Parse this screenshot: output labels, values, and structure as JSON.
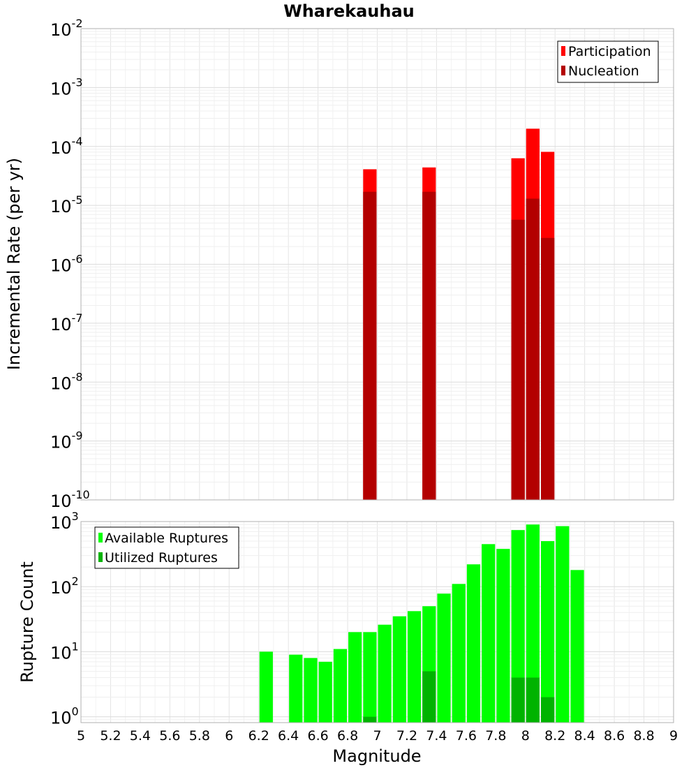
{
  "chart_data": [
    {
      "type": "bar",
      "title": "Wharekauhau",
      "xlabel": "",
      "ylabel": "Incremental Rate (per yr)",
      "yscale": "log",
      "ylim_exponents": [
        -10,
        -2
      ],
      "ytick_base": "10",
      "yticks": [
        "-10",
        "-9",
        "-8",
        "-7",
        "-6",
        "-5",
        "-4",
        "-3",
        "-2"
      ],
      "xlim": [
        5,
        9
      ],
      "bin_width": 0.1,
      "grid": true,
      "legend_position": "top-right",
      "series": [
        {
          "name": "Participation",
          "color": "#ff0000",
          "points": [
            {
              "x": 6.95,
              "y": 4.1e-05
            },
            {
              "x": 7.35,
              "y": 4.4e-05
            },
            {
              "x": 7.95,
              "y": 6.3e-05
            },
            {
              "x": 8.05,
              "y": 0.0002
            },
            {
              "x": 8.15,
              "y": 8.1e-05
            }
          ]
        },
        {
          "name": "Nucleation",
          "color": "#b30000",
          "points": [
            {
              "x": 6.95,
              "y": 1.7e-05
            },
            {
              "x": 7.35,
              "y": 1.7e-05
            },
            {
              "x": 7.95,
              "y": 5.7e-06
            },
            {
              "x": 8.05,
              "y": 1.3e-05
            },
            {
              "x": 8.15,
              "y": 2.8e-06
            }
          ]
        }
      ]
    },
    {
      "type": "bar",
      "title": "",
      "xlabel": "Magnitude",
      "ylabel": "Rupture Count",
      "yscale": "log",
      "ylim_exponents": [
        -0.09,
        3
      ],
      "ytick_base": "10",
      "yticks": [
        "0",
        "1",
        "2",
        "3"
      ],
      "xlim": [
        5,
        9
      ],
      "xticks": [
        "5",
        "5.2",
        "5.4",
        "5.6",
        "5.8",
        "6",
        "6.2",
        "6.4",
        "6.6",
        "6.8",
        "7",
        "7.2",
        "7.4",
        "7.6",
        "7.8",
        "8",
        "8.2",
        "8.4",
        "8.6",
        "8.8",
        "9"
      ],
      "bin_width": 0.1,
      "grid": true,
      "legend_position": "top-left",
      "series": [
        {
          "name": "Available Ruptures",
          "color": "#00ff00",
          "points": [
            {
              "x": 6.25,
              "y": 10
            },
            {
              "x": 6.45,
              "y": 9
            },
            {
              "x": 6.55,
              "y": 8
            },
            {
              "x": 6.65,
              "y": 7
            },
            {
              "x": 6.75,
              "y": 11
            },
            {
              "x": 6.85,
              "y": 20
            },
            {
              "x": 6.95,
              "y": 20
            },
            {
              "x": 7.05,
              "y": 26
            },
            {
              "x": 7.15,
              "y": 35
            },
            {
              "x": 7.25,
              "y": 42
            },
            {
              "x": 7.35,
              "y": 50
            },
            {
              "x": 7.45,
              "y": 78
            },
            {
              "x": 7.55,
              "y": 110
            },
            {
              "x": 7.65,
              "y": 220
            },
            {
              "x": 7.75,
              "y": 450
            },
            {
              "x": 7.85,
              "y": 380
            },
            {
              "x": 7.95,
              "y": 740
            },
            {
              "x": 8.05,
              "y": 900
            },
            {
              "x": 8.15,
              "y": 500
            },
            {
              "x": 8.25,
              "y": 850
            },
            {
              "x": 8.35,
              "y": 180
            }
          ]
        },
        {
          "name": "Utilized Ruptures",
          "color": "#00b300",
          "points": [
            {
              "x": 6.95,
              "y": 1
            },
            {
              "x": 7.35,
              "y": 5
            },
            {
              "x": 7.95,
              "y": 4
            },
            {
              "x": 8.05,
              "y": 4
            },
            {
              "x": 8.15,
              "y": 2
            }
          ]
        }
      ]
    }
  ]
}
